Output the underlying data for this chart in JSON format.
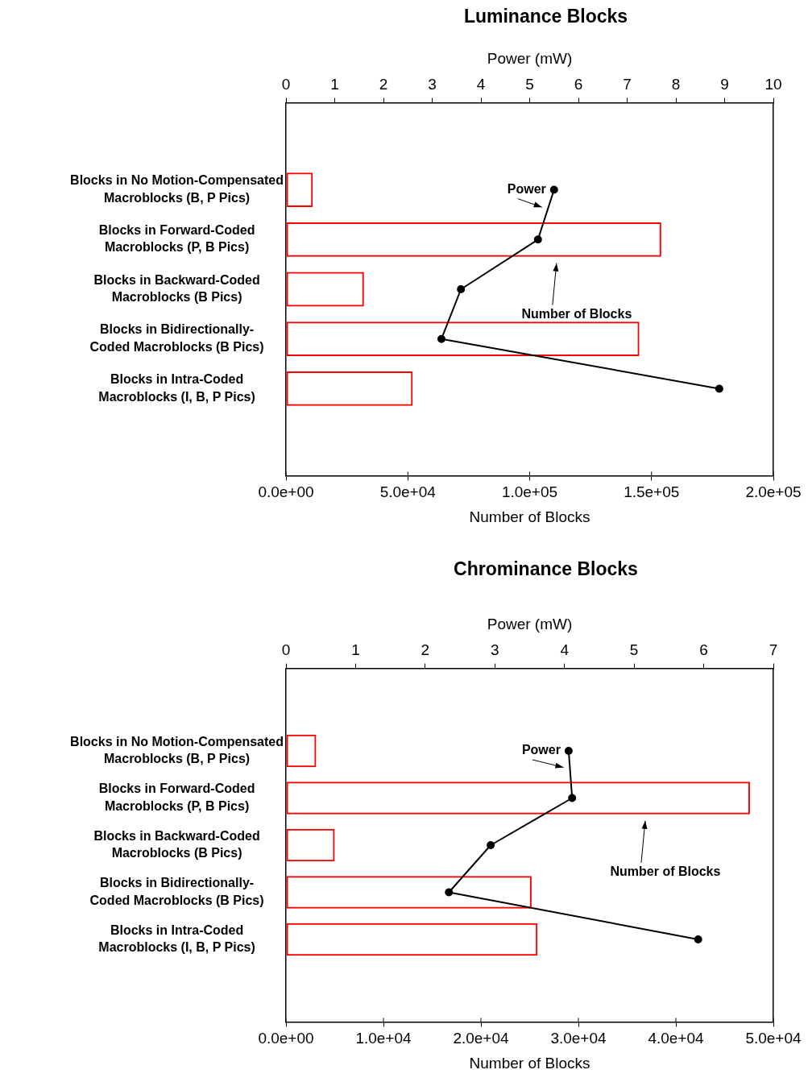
{
  "chart_data": [
    {
      "type": "bar",
      "orientation": "horizontal",
      "title": "Luminance Blocks",
      "xlabel": "Number of Blocks",
      "x2label": "Power (mW)",
      "categories": [
        "Blocks in No Motion-Compensated Macroblocks (B, P Pics)",
        "Blocks in Forward-Coded Macroblocks (P, B Pics)",
        "Blocks in Backward-Coded Macroblocks (B Pics)",
        "Blocks in Bidirectionally-Coded Macroblocks (B Pics)",
        "Blocks in Intra-Coded Macroblocks (I, B, P Pics)"
      ],
      "xlim": [
        0,
        200000
      ],
      "xticks": [
        {
          "value": 0,
          "label": "0.0e+00"
        },
        {
          "value": 50000,
          "label": "5.0e+04"
        },
        {
          "value": 100000,
          "label": "1.0e+05"
        },
        {
          "value": 150000,
          "label": "1.5e+05"
        },
        {
          "value": 200000,
          "label": "2.0e+05"
        }
      ],
      "x2lim": [
        0,
        10
      ],
      "x2ticks": [
        0,
        1,
        2,
        3,
        4,
        5,
        6,
        7,
        8,
        9,
        10
      ],
      "grid": false,
      "legend": false,
      "marker": "circle",
      "series": [
        {
          "name": "Number of Blocks",
          "color": "#ff0000",
          "values": [
            11000,
            154000,
            32000,
            145000,
            52000
          ]
        },
        {
          "name": "Power",
          "type": "line",
          "axis": "x2",
          "color": "#000000",
          "values": [
            5.5,
            5.17,
            3.59,
            3.19,
            8.89
          ]
        }
      ]
    },
    {
      "type": "bar",
      "orientation": "horizontal",
      "title": "Chrominance Blocks",
      "xlabel": "Number of Blocks",
      "x2label": "Power (mW)",
      "categories": [
        "Blocks in No Motion-Compensated Macroblocks (B, P Pics)",
        "Blocks in Forward-Coded Macroblocks (P, B Pics)",
        "Blocks in Backward-Coded Macroblocks (B Pics)",
        "Blocks in Bidirectionally-Coded Macroblocks (B Pics)",
        "Blocks in Intra-Coded Macroblocks (I, B, P Pics)"
      ],
      "xlim": [
        0,
        50000
      ],
      "xticks": [
        {
          "value": 0,
          "label": "0.0e+00"
        },
        {
          "value": 10000,
          "label": "1.0e+04"
        },
        {
          "value": 20000,
          "label": "2.0e+04"
        },
        {
          "value": 30000,
          "label": "3.0e+04"
        },
        {
          "value": 40000,
          "label": "4.0e+04"
        },
        {
          "value": 50000,
          "label": "5.0e+04"
        }
      ],
      "x2lim": [
        0,
        7
      ],
      "x2ticks": [
        0,
        1,
        2,
        3,
        4,
        5,
        6,
        7
      ],
      "grid": false,
      "legend": false,
      "marker": "circle",
      "series": [
        {
          "name": "Number of Blocks",
          "color": "#ff0000",
          "values": [
            3100,
            47600,
            5000,
            25200,
            25800
          ]
        },
        {
          "name": "Power",
          "type": "line",
          "axis": "x2",
          "color": "#000000",
          "values": [
            4.06,
            4.11,
            2.94,
            2.34,
            5.92
          ]
        }
      ]
    }
  ]
}
